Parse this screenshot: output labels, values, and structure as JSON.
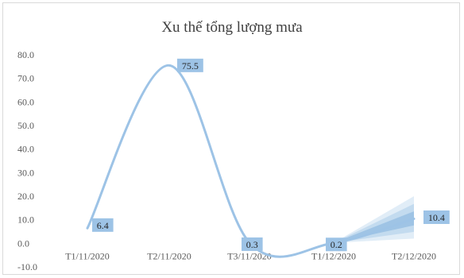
{
  "chart_data": {
    "type": "line",
    "title": "Xu thế tổng lượng mưa",
    "categories": [
      "T1/11/2020",
      "T2/11/2020",
      "T3/11/2020",
      "T1/12/2020",
      "T2/12/2020"
    ],
    "series": [
      {
        "values": [
          6.4,
          75.5,
          0.3,
          0.2,
          10.4
        ],
        "smooth": true,
        "color": "#9dc3e6"
      }
    ],
    "data_labels": [
      "6.4",
      "75.5",
      "0.3",
      "0.2",
      "10.4"
    ],
    "y_ticks": [
      "80.0",
      "70.0",
      "60.0",
      "50.0",
      "40.0",
      "30.0",
      "20.0",
      "10.0",
      "0.0",
      "-10.0"
    ],
    "ylim": [
      -10,
      80
    ],
    "forecast": {
      "color": "#5b9bd5",
      "from_index": 3,
      "to_index": 4,
      "upper_end": 20,
      "lower_end": 2,
      "grid": false
    },
    "xlabel": "",
    "ylabel": "",
    "legend": "none"
  }
}
